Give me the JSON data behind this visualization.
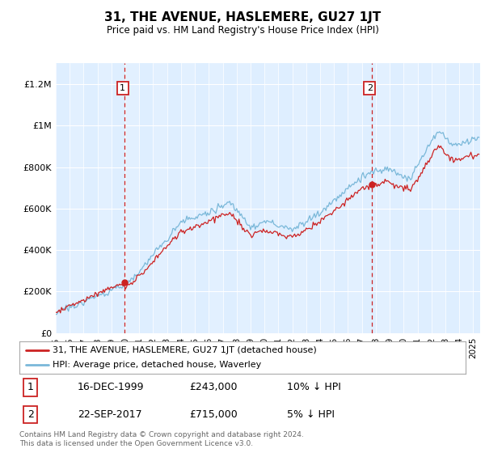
{
  "title": "31, THE AVENUE, HASLEMERE, GU27 1JT",
  "subtitle": "Price paid vs. HM Land Registry's House Price Index (HPI)",
  "legend_line1": "31, THE AVENUE, HASLEMERE, GU27 1JT (detached house)",
  "legend_line2": "HPI: Average price, detached house, Waverley",
  "footnote": "Contains HM Land Registry data © Crown copyright and database right 2024.\nThis data is licensed under the Open Government Licence v3.0.",
  "sale1_date": "16-DEC-1999",
  "sale1_price": 243000,
  "sale1_label": "1",
  "sale1_pct": "10% ↓ HPI",
  "sale2_date": "22-SEP-2017",
  "sale2_price": 715000,
  "sale2_label": "2",
  "sale2_pct": "5% ↓ HPI",
  "hpi_color": "#7ab8d9",
  "sale_color": "#cc2222",
  "vline_color": "#cc2222",
  "bg_color": "#deeeff",
  "ylim": [
    0,
    1300000
  ],
  "yticks": [
    0,
    200000,
    400000,
    600000,
    800000,
    1000000,
    1200000
  ],
  "xlim_start": 1995.0,
  "xlim_end": 2025.5,
  "sale1_t": 1999.958,
  "sale2_t": 2017.708
}
